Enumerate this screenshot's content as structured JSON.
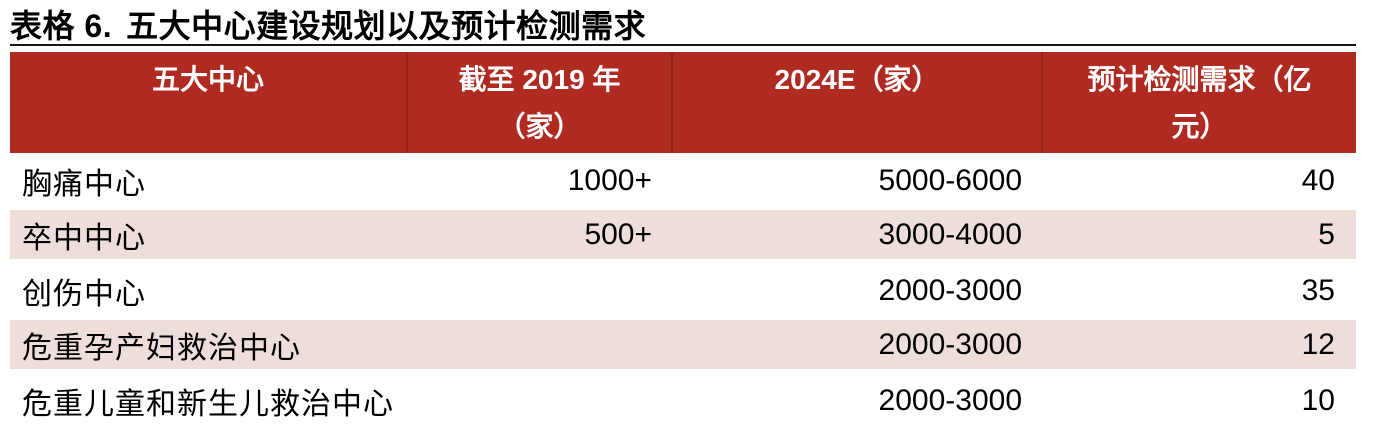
{
  "title": {
    "prefix": "表格 6.",
    "text": "五大中心建设规划以及预计检测需求"
  },
  "colors": {
    "header_bg": "#AF2A21",
    "zebra_row_bg": "#EEDEDA",
    "title_rule": "#161616",
    "header_text": "#ffffff"
  },
  "table": {
    "columns": [
      {
        "id": "center-name",
        "label_lines": [
          "五大中心",
          ""
        ]
      },
      {
        "id": "as-of-2019",
        "label_lines": [
          "截至 2019 年",
          "（家）"
        ]
      },
      {
        "id": "estimate-2024",
        "label_lines": [
          "2024E（家）",
          ""
        ]
      },
      {
        "id": "expected-demand",
        "label_lines": [
          "预计检测需求（亿",
          "元）"
        ]
      }
    ],
    "rows": [
      {
        "name": "胸痛中心",
        "count_2019": "1000+",
        "count_2024e": "5000-6000",
        "demand_billion": "40"
      },
      {
        "name": "卒中中心",
        "count_2019": "500+",
        "count_2024e": "3000-4000",
        "demand_billion": "5"
      },
      {
        "name": "创伤中心",
        "count_2019": "",
        "count_2024e": "2000-3000",
        "demand_billion": "35"
      },
      {
        "name": "危重孕产妇救治中心",
        "count_2019": "",
        "count_2024e": "2000-3000",
        "demand_billion": "12"
      },
      {
        "name": "危重儿童和新生儿救治中心",
        "count_2019": "",
        "count_2024e": "2000-3000",
        "demand_billion": "10"
      }
    ]
  }
}
